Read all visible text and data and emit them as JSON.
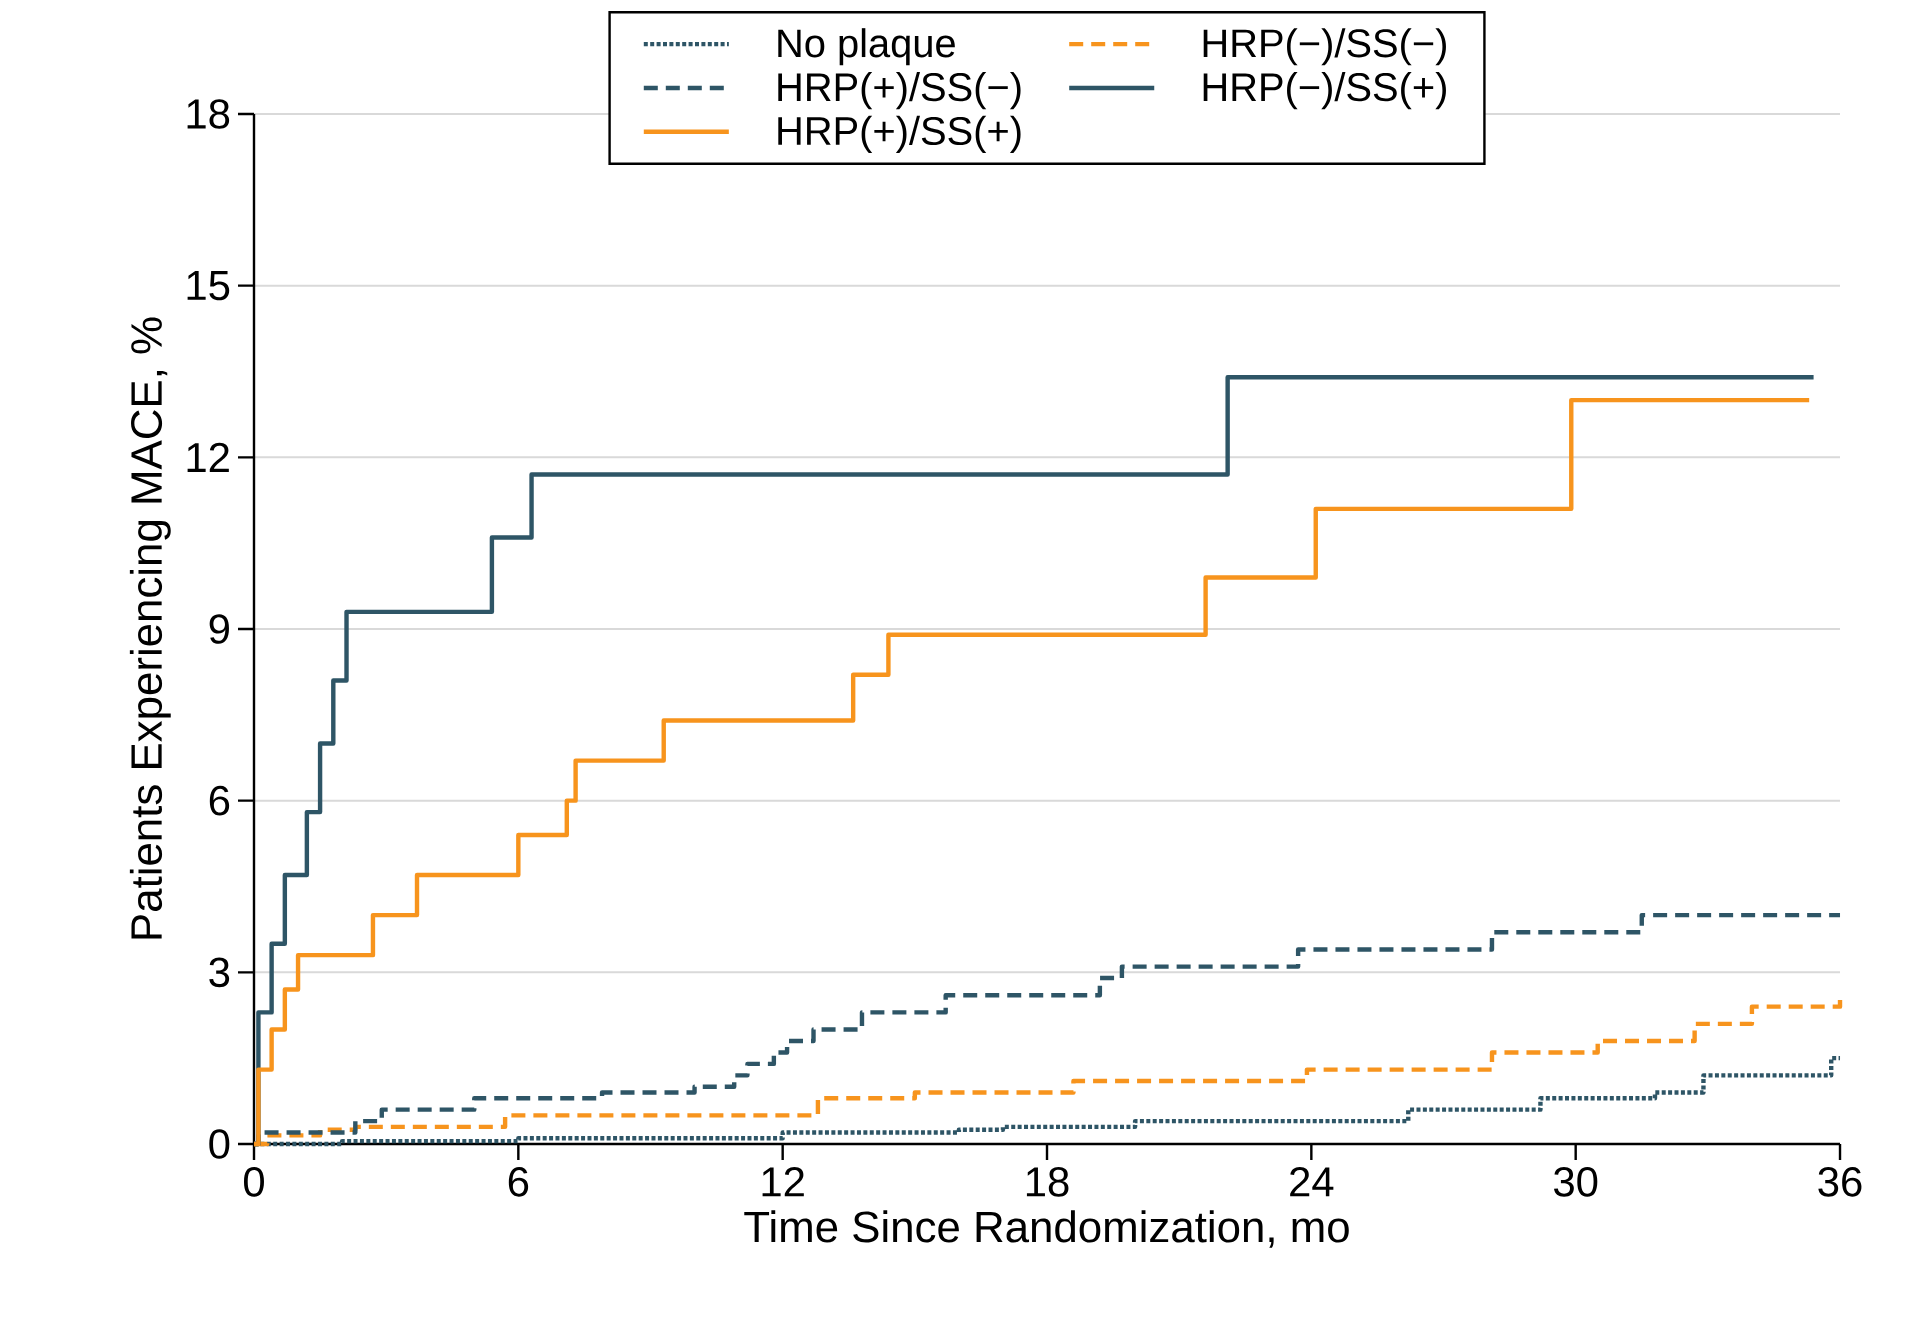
{
  "chart_data": {
    "type": "step",
    "xlabel": "Time Since Randomization, mo",
    "ylabel": "Patients Experiencing MACE, %",
    "xlim": [
      0,
      36
    ],
    "ylim": [
      0,
      18
    ],
    "xticks": [
      0,
      6,
      12,
      18,
      24,
      30,
      36
    ],
    "yticks": [
      0,
      3,
      6,
      9,
      12,
      15,
      18
    ],
    "grid": "y",
    "legend": "top",
    "series": [
      {
        "name": "No plaque",
        "color": "#2e5566",
        "line_style": "dotted",
        "x": [
          0,
          2,
          6,
          12,
          16,
          17,
          20,
          26.2,
          29.2,
          31.8,
          32.9,
          35.8,
          36
        ],
        "values": [
          0,
          0.05,
          0.1,
          0.2,
          0.25,
          0.3,
          0.4,
          0.6,
          0.8,
          0.9,
          1.2,
          1.5,
          1.5
        ]
      },
      {
        "name": "HRP(−)/SS(−)",
        "color": "#f7941d",
        "line_style": "dashed",
        "x": [
          0,
          0.3,
          1.5,
          2.3,
          5.7,
          12.8,
          15,
          18.6,
          23.9,
          28.1,
          30.5,
          32.7,
          34,
          36
        ],
        "values": [
          0,
          0.15,
          0.25,
          0.3,
          0.5,
          0.8,
          0.9,
          1.1,
          1.3,
          1.6,
          1.8,
          2.1,
          2.4,
          2.6
        ]
      },
      {
        "name": "HRP(+)/SS(−)",
        "color": "#2e5566",
        "line_style": "dashed",
        "x": [
          0,
          0.1,
          2.3,
          2.9,
          5,
          7.9,
          10,
          10.9,
          11.2,
          11.8,
          12.1,
          12.7,
          13.8,
          15.7,
          19.2,
          19.7,
          23.7,
          28.1,
          31.5,
          36
        ],
        "values": [
          0,
          0.2,
          0.4,
          0.6,
          0.8,
          0.9,
          1,
          1.2,
          1.4,
          1.6,
          1.8,
          2,
          2.3,
          2.6,
          2.9,
          3.1,
          3.4,
          3.7,
          4,
          4
        ]
      },
      {
        "name": "HRP(−)/SS(+)",
        "color": "#2e5566",
        "line_style": "solid",
        "x": [
          0,
          0.1,
          0.4,
          0.7,
          1.2,
          1.5,
          1.8,
          2.1,
          5.4,
          6.3,
          22.1,
          35.4
        ],
        "values": [
          0,
          2.3,
          3.5,
          4.7,
          5.8,
          7,
          8.1,
          9.3,
          10.6,
          11.7,
          13.4,
          13.4
        ]
      },
      {
        "name": "HRP(+)/SS(+)",
        "color": "#f7941d",
        "line_style": "solid",
        "x": [
          0,
          0.1,
          0.4,
          0.7,
          1,
          2.7,
          3.7,
          6,
          7.1,
          7.3,
          9.3,
          13.6,
          14.4,
          21.6,
          24.1,
          29.9,
          35.3
        ],
        "values": [
          0,
          1.3,
          2,
          2.7,
          3.3,
          4,
          4.7,
          5.4,
          6,
          6.7,
          7.4,
          8.2,
          8.9,
          9.9,
          11.1,
          13,
          13
        ]
      }
    ]
  }
}
